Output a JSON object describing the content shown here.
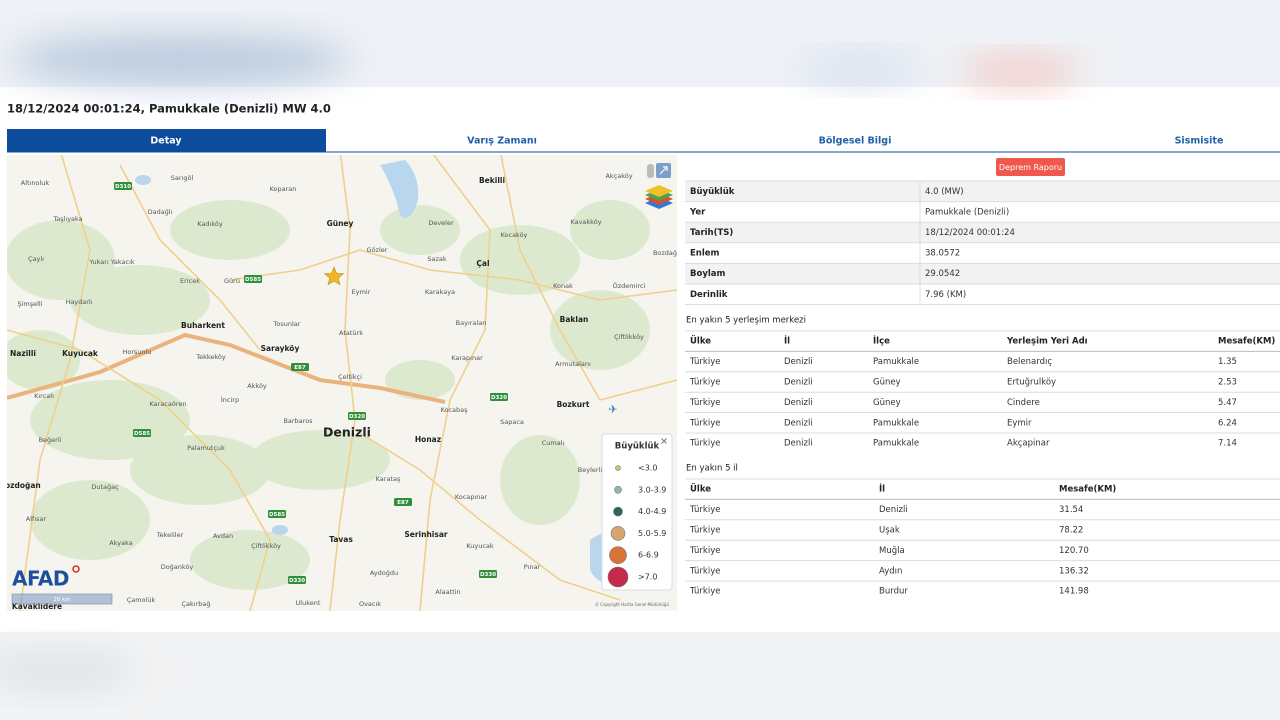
{
  "header": {
    "title": "18/12/2024 00:01:24, Pamukkale (Denizli) MW 4.0"
  },
  "tabs": [
    "Detay",
    "Varış Zamanı",
    "Bölgesel Bilgi",
    "Sismisite"
  ],
  "report_button": "Deprem Raporu",
  "details": [
    [
      "Büyüklük",
      "4.0 (MW)"
    ],
    [
      "Yer",
      "Pamukkale (Denizli)"
    ],
    [
      "Tarih(TS)",
      "18/12/2024 00:01:24"
    ],
    [
      "Enlem",
      "38.0572"
    ],
    [
      "Boylam",
      "29.0542"
    ],
    [
      "Derinlik",
      "7.96 (KM)"
    ]
  ],
  "nearest_settlements": {
    "title": "En yakın 5 yerleşim merkezi",
    "headers": [
      "Ülke",
      "İl",
      "İlçe",
      "Yerleşim Yeri Adı",
      "Mesafe(KM)"
    ],
    "rows": [
      [
        "Türkiye",
        "Denizli",
        "Pamukkale",
        "Belenardıç",
        "1.35"
      ],
      [
        "Türkiye",
        "Denizli",
        "Güney",
        "Ertuğrulköy",
        "2.53"
      ],
      [
        "Türkiye",
        "Denizli",
        "Güney",
        "Cindere",
        "5.47"
      ],
      [
        "Türkiye",
        "Denizli",
        "Pamukkale",
        "Eymir",
        "6.24"
      ],
      [
        "Türkiye",
        "Denizli",
        "Pamukkale",
        "Akçapinar",
        "7.14"
      ]
    ]
  },
  "nearest_provinces": {
    "title": "En yakın 5 il",
    "headers": [
      "Ülke",
      "İl",
      "Mesafe(KM)"
    ],
    "rows": [
      [
        "Türkiye",
        "Denizli",
        "31.54"
      ],
      [
        "Türkiye",
        "Uşak",
        "78.22"
      ],
      [
        "Türkiye",
        "Muğla",
        "120.70"
      ],
      [
        "Türkiye",
        "Aydın",
        "136.32"
      ],
      [
        "Türkiye",
        "Burdur",
        "141.98"
      ]
    ]
  },
  "map": {
    "places": [
      "Altınoluk",
      "Sarıgöl",
      "Koparan",
      "Bekilli",
      "Akçaköy",
      "Dadağlı",
      "Taşlıyaka",
      "Kadıköy",
      "Güney",
      "Develer",
      "Kocaköy",
      "Kavakköy",
      "Gözler",
      "Sazak",
      "Çal",
      "Bozdağ",
      "Çaylı",
      "Yukarı Yakacık",
      "Ericek",
      "Gürü",
      "Eymir",
      "Karakaya",
      "Konak",
      "Özdemirci",
      "Şimşelli",
      "Haydarlı",
      "Buharkent",
      "Tosunlar",
      "Atatürk",
      "Bayıralan",
      "Baklan",
      "Çiftlikköy",
      "Nazilli",
      "Kuyucak",
      "Horsunlu",
      "Tekkeköy",
      "Sarayköy",
      "Karapınar",
      "Armutalanı",
      "Akköy",
      "Kırcalı",
      "Karacaören",
      "İncirp",
      "Çeltikçi",
      "Kocabaş",
      "Bozkurt",
      "Barbaros",
      "Denizli",
      "Honaz",
      "Sapaca",
      "Cumalı",
      "Beğerli",
      "Palamutçuk",
      "Bozdoğan",
      "Dutağaç",
      "Karataş",
      "Beylerli",
      "Kocapınar",
      "Alfısar",
      "Tekeliler",
      "Avdan",
      "Tavas",
      "Serinhisar",
      "Kuyucak",
      "Akyaka",
      "Çiftlikköy",
      "Doğanköy",
      "Aydoğdu",
      "Pınar",
      "Kavaklıdere",
      "Çamolük",
      "Çakırbağ",
      "Ulukent",
      "Ovacık",
      "Alaattin"
    ],
    "road_labels": [
      "D310",
      "D585",
      "E87",
      "D320",
      "D320",
      "D585",
      "E87",
      "D585",
      "D330",
      "D330"
    ],
    "logo": "AFAD",
    "scale": "20 km",
    "copyright": "© Copyright Harita Genel Müdürlüğü",
    "legend": {
      "title": "Büyüklük",
      "items": [
        {
          "label": "<3.0",
          "color": "#a6d96a"
        },
        {
          "label": "3.0-3.9",
          "color": "#8fb8b4"
        },
        {
          "label": "4.0-4.9",
          "color": "#2b6657"
        },
        {
          "label": "5.0-5.9",
          "color": "#d6a66c"
        },
        {
          "label": "6-6.9",
          "color": "#d9733a"
        },
        {
          "label": ">7.0",
          "color": "#c62a4b"
        }
      ]
    }
  }
}
